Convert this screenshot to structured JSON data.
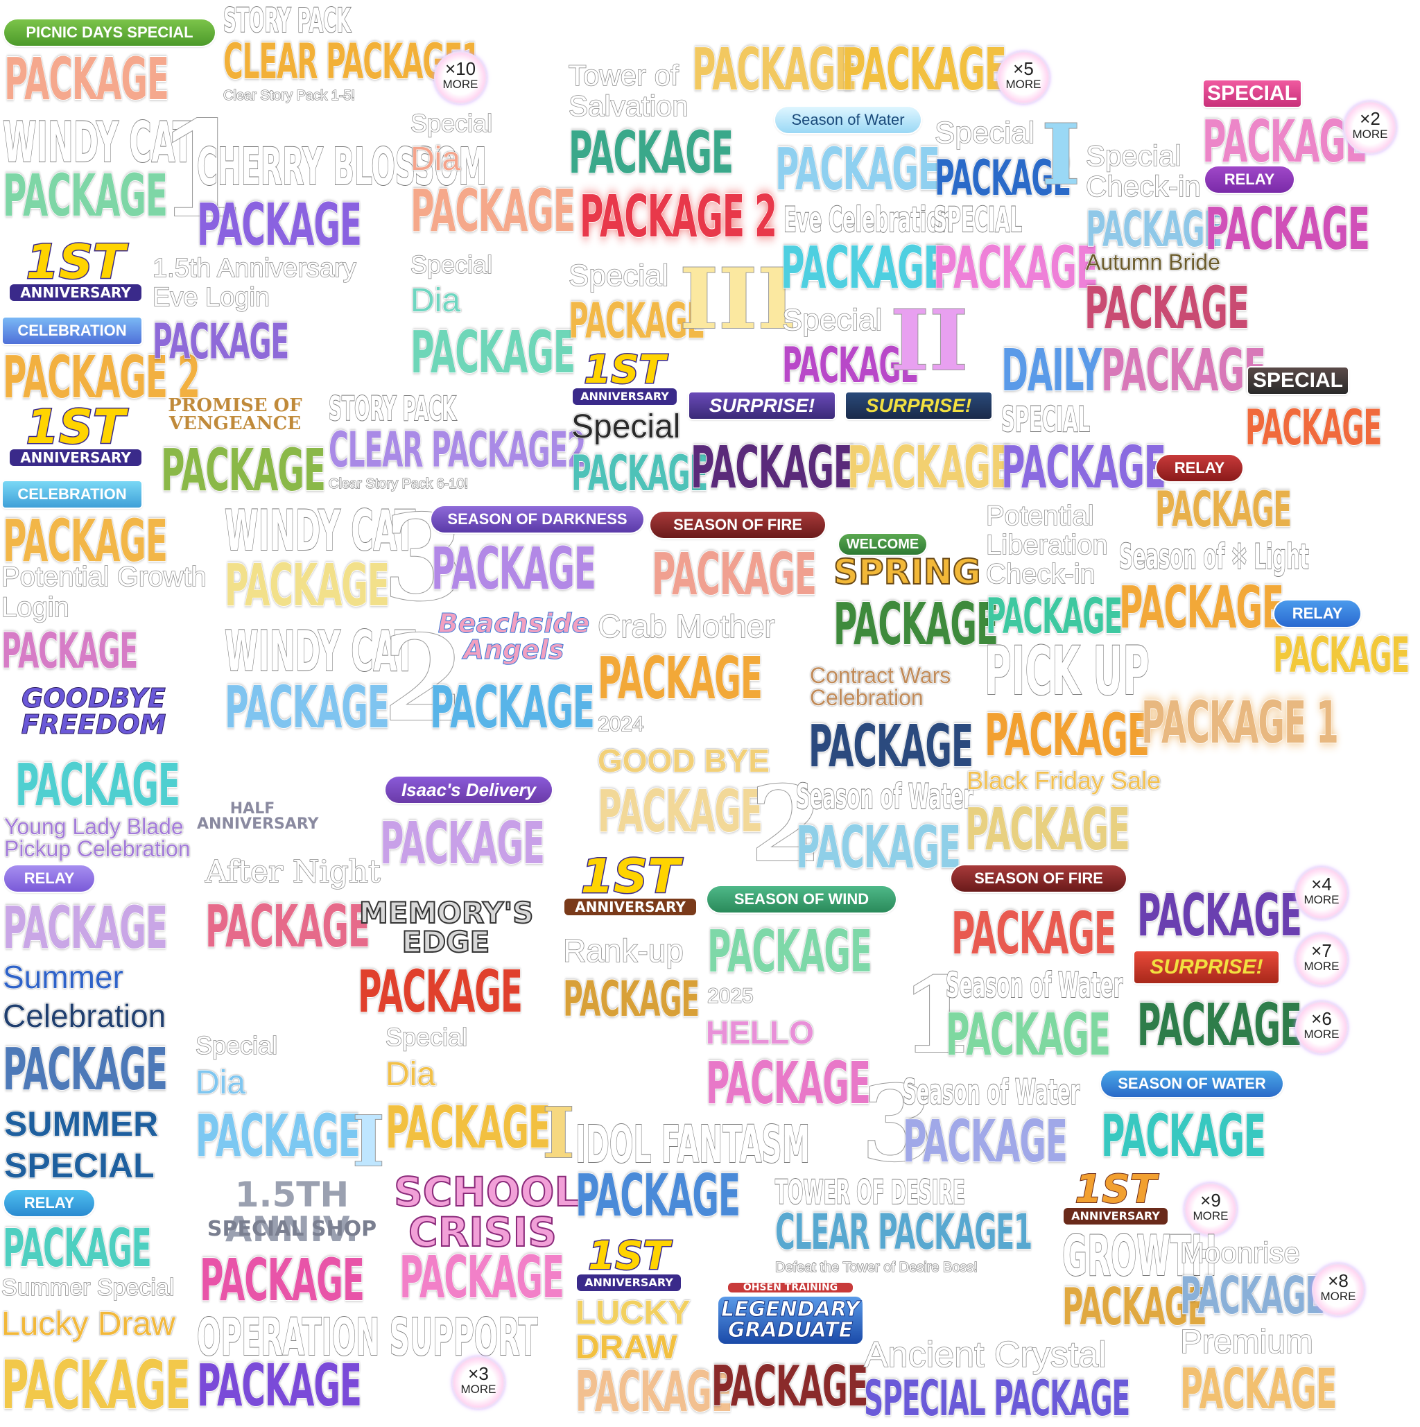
{
  "colors": {
    "peach": "#f7b49a",
    "mint": "#7fd9a8",
    "lavender": "#b9a3f0",
    "gold": "#f2b648",
    "teal": "#56c6b8",
    "sky": "#8fd3f0",
    "pink": "#ee86c8",
    "violet": "#8a55d8",
    "red": "#e05858",
    "green": "#3e9c5a",
    "navy": "#2b4a7e",
    "rose": "#c94b72",
    "orange": "#f08a3c",
    "purple": "#6a3fb0",
    "darkgreen": "#2e7d4a"
  },
  "badges": {
    "picnic": "PICNIC DAYS SPECIAL",
    "season_water_1": "Season of Water",
    "special_1": "SPECIAL",
    "relay_1": "RELAY",
    "celebration_1": "CELEBRATION",
    "celebration_2": "CELEBRATION",
    "special_2": "SPECIAL",
    "surprise_1": "SURPRISE!",
    "surprise_2": "SURPRISE!",
    "relay_2": "RELAY",
    "season_darkness": "SEASON OF DARKNESS",
    "season_fire_1": "SEASON OF FIRE",
    "welcome": "WELCOME",
    "relay_3": "RELAY",
    "isaac": "Isaac's Delivery",
    "relay_4": "RELAY",
    "season_wind": "SEASON OF WIND",
    "season_fire_2": "SEASON OF FIRE",
    "surprise_3": "SURPRISE!",
    "season_water_2": "SEASON OF WATER",
    "relay_5": "RELAY"
  },
  "more": {
    "m10": {
      "count": "×10",
      "label": "MORE"
    },
    "m5": {
      "count": "×5",
      "label": "MORE"
    },
    "m2": {
      "count": "×2",
      "label": "MORE"
    },
    "m4": {
      "count": "×4",
      "label": "MORE"
    },
    "m7": {
      "count": "×7",
      "label": "MORE"
    },
    "m6": {
      "count": "×6",
      "label": "MORE"
    },
    "m9": {
      "count": "×9",
      "label": "MORE"
    },
    "m8": {
      "count": "×8",
      "label": "MORE"
    },
    "m3": {
      "count": "×3",
      "label": "MORE"
    }
  },
  "anniversary": {
    "number": "1ST",
    "label": "ANNIVERSARY"
  },
  "logos": {
    "promise": "PROMISE OF VENGEANCE",
    "beachside": "Beachside Angels",
    "goodbye": "GOODBYE FREEDOM",
    "half": "HALF ANNIVERSARY",
    "memorys_edge": "MEMORY'S EDGE",
    "school_crisis": "SCHOOL CRISIS",
    "anniv15_shop_1": "1.5TH ANNIV.",
    "anniv15_shop_2": "SPECIAL SHOP",
    "legendary_top": "OHSEN TRAINING",
    "legendary": "LEGENDARY GRADUATE",
    "spring": "SPRING"
  },
  "texts": {
    "story_pack_1": "STORY PACK",
    "clear_package1": "CLEAR PACKAGE1",
    "clear_story_1": "Clear Story Pack 1-5!",
    "tower_salvation_1": "Tower of",
    "tower_salvation_2": "Salvation",
    "special_a": "Special",
    "dia_a": "Dia",
    "windy_cat": "WINDY CAT",
    "cherry": "CHERRY BLOSSOM",
    "package_2_a": "PACKAGE 2",
    "eve_celebration": "Eve Celebration",
    "special_caps_a": "SPECIAL",
    "special_b": "Special",
    "special_checkin_1": "Special",
    "special_checkin_2": "Check-in",
    "anniv15_1": "1.5th Anniversary",
    "anniv15_2": "Eve Login",
    "special_c": "Special",
    "dia_b": "Dia",
    "special_d": "Special",
    "special_e": "Special",
    "autumn_bride": "Autumn Bride",
    "daily": "DAILY",
    "package_2_b": "PACKAGE 2",
    "story_pack_2": "STORY PACK",
    "clear_package2": "CLEAR PACKAGE2",
    "clear_story_2": "Clear Story Pack 6-10!",
    "special_f": "Special",
    "special_caps_b": "SPECIAL",
    "potential_lib_1": "Potential",
    "potential_lib_2": "Liberation",
    "potential_lib_3": "Check-in",
    "season_light": "Season of ✲ Light",
    "potential_growth_1": "Potential Growth",
    "potential_growth_2": "Login",
    "crab_mother": "Crab Mother",
    "year_2024": "2024",
    "contract_wars_1": "Contract Wars",
    "contract_wars_2": "Celebration",
    "pick_up": "PICK UP",
    "package_1": "PACKAGE 1",
    "good_bye": "GOOD BYE",
    "black_friday": "Black Friday Sale",
    "season_water_c1": "Season of Water",
    "young_lady_1": "Young Lady Blade",
    "young_lady_2": "Pickup Celebration",
    "after_night": "After Night",
    "rank_up": "Rank-up",
    "year_2025": "2025",
    "season_water_c2": "Season of Water",
    "summer_1": "Summer",
    "summer_2": "Celebration",
    "special_g": "Special",
    "dia_c": "Dia",
    "special_h": "Special",
    "dia_d": "Dia",
    "hello": "HELLO",
    "season_water_c3": "Season of Water",
    "summer_special_caps_1": "SUMMER",
    "summer_special_caps_2": "SPECIAL",
    "idol_fantasm": "IDOL FANTASM",
    "tower_desire": "TOWER OF DESIRE",
    "clear_package1_b": "CLEAR PACKAGE1",
    "defeat_tower": "Defeat the Tower of Desire Boss!",
    "moonrise": "Moonrise",
    "summer_special": "Summer Special",
    "lucky_draw_a": "Lucky Draw",
    "operation_support": "OPERATION SUPPORT",
    "lucky": "LUCKY",
    "draw": "DRAW",
    "ancient_crystal": "Ancient Crystal",
    "special_package": "SPECIAL PACKAGE",
    "premium": "Premium",
    "growth": "GROWTH",
    "numeral_1": "1",
    "numeral_I": "I",
    "numeral_III": "III",
    "numeral_II": "II",
    "numeral_3": "3",
    "numeral_2": "2"
  },
  "packages": {
    "package": "PACKAGE"
  }
}
